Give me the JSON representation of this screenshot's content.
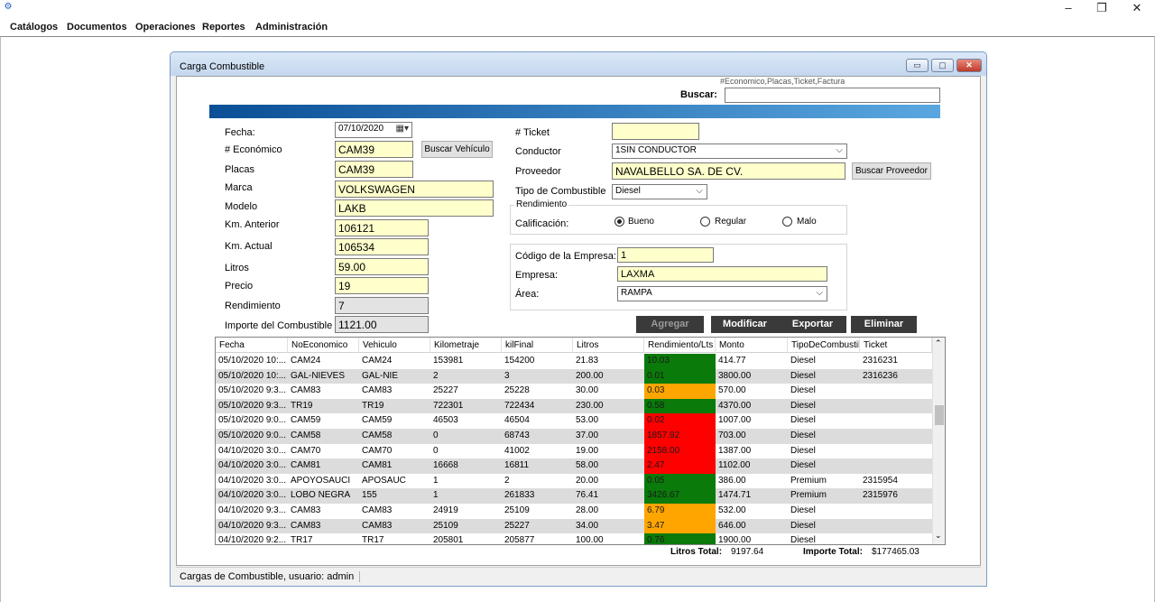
{
  "app": {
    "menu": [
      "Catálogos",
      "Documentos",
      "Operaciones",
      "Reportes",
      "Administración"
    ],
    "window_controls": {
      "minimize": "–",
      "restore": "❐",
      "close": "✕"
    }
  },
  "child": {
    "title": "Carga Combustible",
    "controls": {
      "minimize": "▭",
      "restore": "▢",
      "close": "✕"
    }
  },
  "search": {
    "hint": "#Economico,Placas,Ticket,Factura",
    "label": "Buscar:",
    "value": ""
  },
  "form": {
    "fecha_label": "Fecha:",
    "fecha_value": "07/10/2020",
    "economico_label": "# Económico",
    "economico_value": "CAM39",
    "buscar_vehiculo": "Buscar Vehículo",
    "placas_label": "Placas",
    "placas_value": "CAM39",
    "marca_label": "Marca",
    "marca_value": "VOLKSWAGEN",
    "modelo_label": "Modelo",
    "modelo_value": "LAKB",
    "km_anterior_label": "Km. Anterior",
    "km_anterior_value": "106121",
    "km_actual_label": "Km. Actual",
    "km_actual_value": "106534",
    "litros_label": "Litros",
    "litros_value": "59.00",
    "precio_label": "Precio",
    "precio_value": "19",
    "rendimiento_label": "Rendimiento",
    "rendimiento_value": "7",
    "importe_label": "Importe del Combustible",
    "importe_value": "1121.00",
    "ticket_label": "# Ticket",
    "ticket_value": "",
    "conductor_label": "Conductor",
    "conductor_value": "1SIN CONDUCTOR",
    "proveedor_label": "Proveedor",
    "proveedor_value": "NAVALBELLO SA. DE CV.",
    "buscar_proveedor": "Buscar Proveedor",
    "tipo_label": "Tipo de Combustible",
    "tipo_value": "Diesel",
    "rend_group_label": "Rendimiento",
    "calificacion_label": "Calificación:",
    "calificacion_options": [
      "Bueno",
      "Regular",
      "Malo"
    ],
    "calificacion_selected": "Bueno",
    "codigo_empresa_label": "Código de la Empresa:",
    "codigo_empresa_value": "1",
    "empresa_label": "Empresa:",
    "empresa_value": "LAXMA",
    "area_label": "Área:",
    "area_value": "RAMPA"
  },
  "actions": {
    "agregar": "Agregar",
    "modificar": "Modificar",
    "exportar": "Exportar",
    "eliminar": "Eliminar"
  },
  "grid": {
    "columns": [
      "Fecha",
      "NoEconomico",
      "Vehiculo",
      "Kilometraje",
      "kilFinal",
      "Litros",
      "Rendimiento/Lts",
      "Monto",
      "TipoDeCombustible",
      "Ticket"
    ],
    "rows": [
      [
        "05/10/2020 10:...",
        "CAM24",
        "CAM24",
        "153981",
        "154200",
        "21.83",
        "10.03",
        "414.77",
        "Diesel",
        "2316231"
      ],
      [
        "05/10/2020 10:...",
        "GAL-NIEVES",
        "GAL-NIE",
        "2",
        "3",
        "200.00",
        "0.01",
        "3800.00",
        "Diesel",
        "2316236"
      ],
      [
        "05/10/2020 9:3...",
        "CAM83",
        "CAM83",
        "25227",
        "25228",
        "30.00",
        "0.03",
        "570.00",
        "Diesel",
        ""
      ],
      [
        "05/10/2020 9:3...",
        "TR19",
        "TR19",
        "722301",
        "722434",
        "230.00",
        "0.58",
        "4370.00",
        "Diesel",
        ""
      ],
      [
        "05/10/2020 9:0...",
        "CAM59",
        "CAM59",
        "46503",
        "46504",
        "53.00",
        "0.02",
        "1007.00",
        "Diesel",
        ""
      ],
      [
        "05/10/2020 9:0...",
        "CAM58",
        "CAM58",
        "0",
        "68743",
        "37.00",
        "1857.92",
        "703.00",
        "Diesel",
        ""
      ],
      [
        "04/10/2020 3:0...",
        "CAM70",
        "CAM70",
        "0",
        "41002",
        "19.00",
        "2158.00",
        "1387.00",
        "Diesel",
        ""
      ],
      [
        "04/10/2020 3:0...",
        "CAM81",
        "CAM81",
        "16668",
        "16811",
        "58.00",
        "2.47",
        "1102.00",
        "Diesel",
        ""
      ],
      [
        "04/10/2020 3:0...",
        "APOYOSAUCI",
        "APOSAUC",
        "1",
        "2",
        "20.00",
        "0.05",
        "386.00",
        "Premium",
        "2315954"
      ],
      [
        "04/10/2020 3:0...",
        "LOBO NEGRA",
        "155",
        "1",
        "261833",
        "76.41",
        "3426.67",
        "1474.71",
        "Premium",
        "2315976"
      ],
      [
        "04/10/2020 9:3...",
        "CAM83",
        "CAM83",
        "24919",
        "25109",
        "28.00",
        "6.79",
        "532.00",
        "Diesel",
        ""
      ],
      [
        "04/10/2020 9:3...",
        "CAM83",
        "CAM83",
        "25109",
        "25227",
        "34.00",
        "3.47",
        "646.00",
        "Diesel",
        ""
      ],
      [
        "04/10/2020 9:2...",
        "TR17",
        "TR17",
        "205801",
        "205877",
        "100.00",
        "0.76",
        "1900.00",
        "Diesel",
        ""
      ]
    ],
    "rend_colors": [
      "#0a7a0a",
      "#0a7a0a",
      "#ffa500",
      "#0a7a0a",
      "#ff0000",
      "#ff0000",
      "#ff0000",
      "#ff0000",
      "#0a7a0a",
      "#0a7a0a",
      "#ffa500",
      "#ffa500",
      "#0a7a0a"
    ]
  },
  "totals": {
    "litros_label": "Litros Total:",
    "litros_value": "9197.64",
    "importe_label": "Importe Total:",
    "importe_value": "$177465.03"
  },
  "status": {
    "text": "Cargas de Combustible, usuario: admin"
  },
  "colors": {
    "banner_start": "#0b4f96",
    "banner_end": "#5aa7e0",
    "field_bg": "#ffffcc",
    "good": "#0a7a0a",
    "warn": "#ffa500",
    "bad": "#ff0000"
  }
}
